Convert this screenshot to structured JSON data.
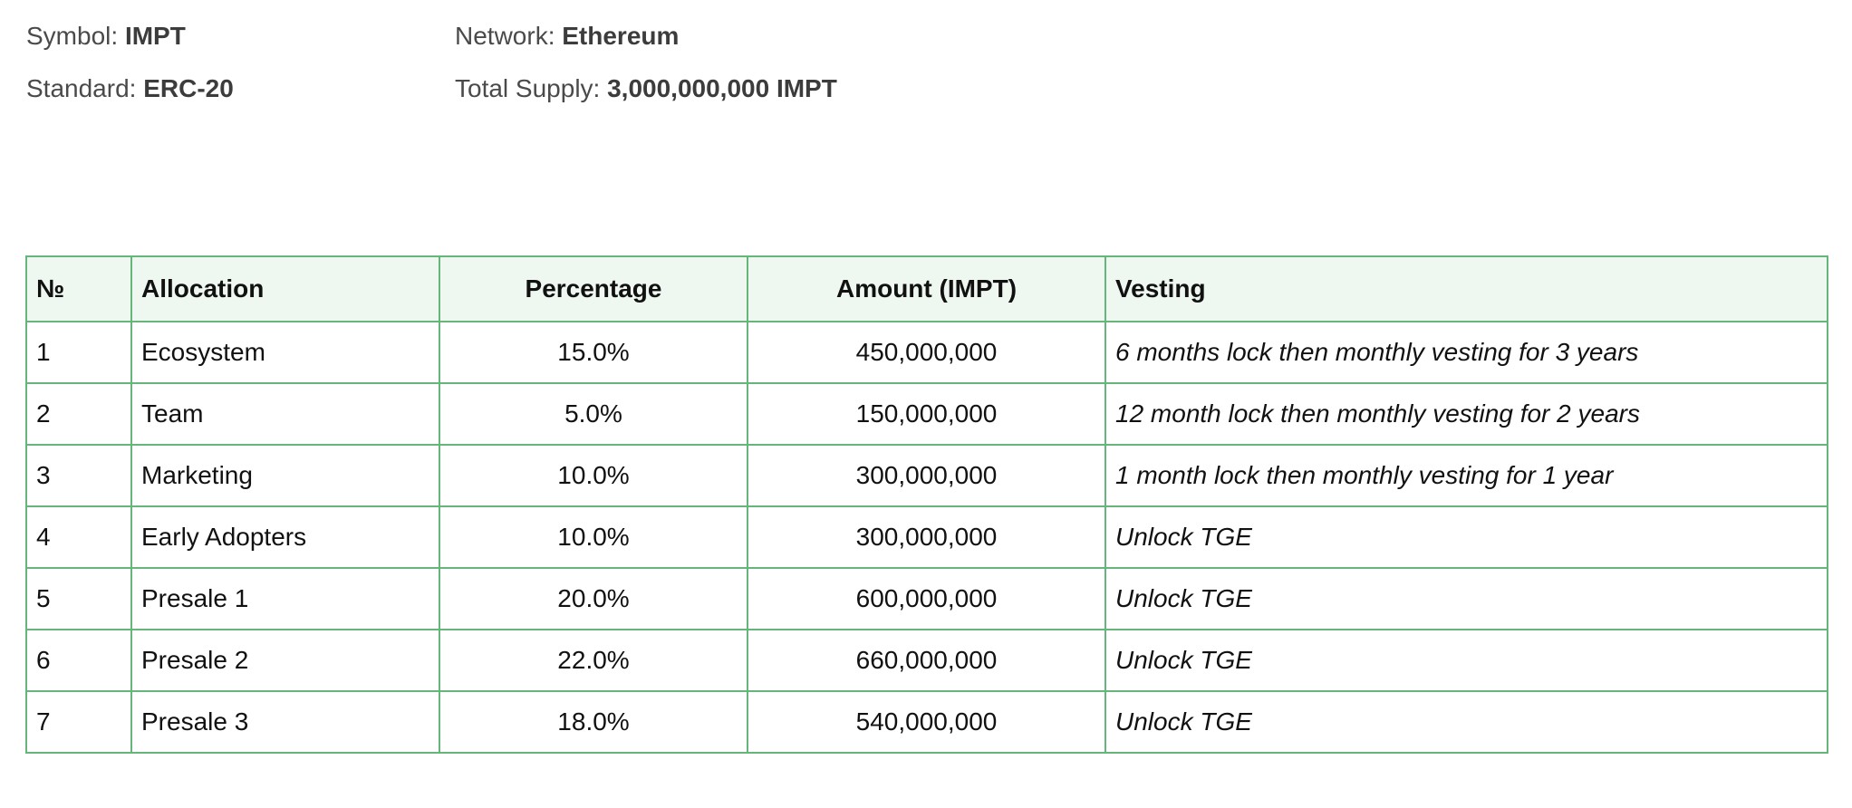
{
  "token_info": {
    "symbol_label": "Symbol:",
    "symbol_value": "IMPT",
    "network_label": "Network:",
    "network_value": "Ethereum",
    "standard_label": "Standard:",
    "standard_value": "ERC-20",
    "supply_label": "Total Supply:",
    "supply_value": "3,000,000,000 IMPT"
  },
  "table": {
    "headers": {
      "no": "№",
      "allocation": "Allocation",
      "percentage": "Percentage",
      "amount": "Amount (IMPT)",
      "vesting": "Vesting"
    },
    "rows": [
      {
        "no": "1",
        "allocation": "Ecosystem",
        "percentage": "15.0%",
        "amount": "450,000,000",
        "vesting": "6 months lock then monthly vesting for 3 years"
      },
      {
        "no": "2",
        "allocation": "Team",
        "percentage": "5.0%",
        "amount": "150,000,000",
        "vesting": "12 month lock then monthly vesting for 2 years"
      },
      {
        "no": "3",
        "allocation": "Marketing",
        "percentage": "10.0%",
        "amount": "300,000,000",
        "vesting": "1 month lock then monthly vesting for 1 year"
      },
      {
        "no": "4",
        "allocation": "Early Adopters",
        "percentage": "10.0%",
        "amount": "300,000,000",
        "vesting": "Unlock TGE"
      },
      {
        "no": "5",
        "allocation": "Presale 1",
        "percentage": "20.0%",
        "amount": "600,000,000",
        "vesting": "Unlock TGE"
      },
      {
        "no": "6",
        "allocation": "Presale 2",
        "percentage": "22.0%",
        "amount": "660,000,000",
        "vesting": "Unlock TGE"
      },
      {
        "no": "7",
        "allocation": "Presale 3",
        "percentage": "18.0%",
        "amount": "540,000,000",
        "vesting": "Unlock TGE"
      }
    ]
  },
  "colors": {
    "table_border": "#66b57a",
    "header_background": "#eef7f0",
    "info_text": "#4a4a4a"
  }
}
